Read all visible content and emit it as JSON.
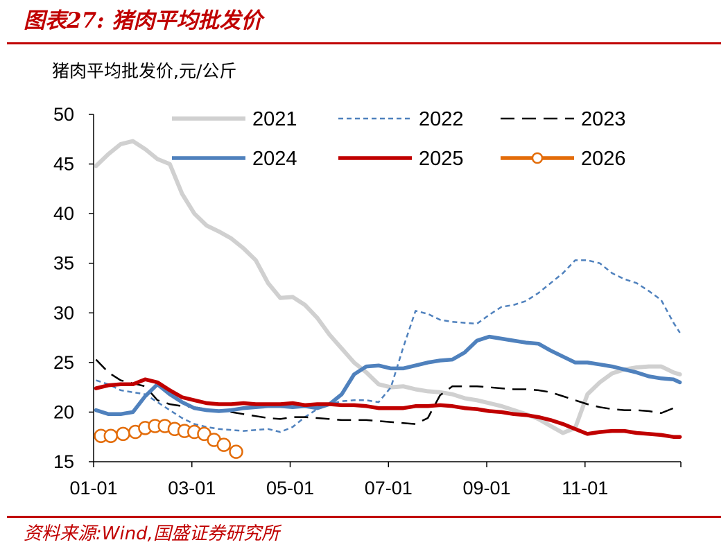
{
  "figure_label": "图表27:",
  "figure_title": "猪肉平均批发价",
  "source": "资料来源:Wind,国盛证券研究所",
  "colors": {
    "brand": "#c00000"
  },
  "chart_data": {
    "type": "line",
    "title": "猪肉平均批发价",
    "ylabel": "猪肉平均批发价,元/公斤",
    "xlabel": "",
    "ylim": [
      15,
      50
    ],
    "yticks": [
      15,
      20,
      25,
      30,
      35,
      40,
      45,
      50
    ],
    "xlim": [
      1,
      12.95
    ],
    "xticks": [
      {
        "label": "01-01",
        "value": 1
      },
      {
        "label": "03-01",
        "value": 3
      },
      {
        "label": "05-01",
        "value": 5
      },
      {
        "label": "07-01",
        "value": 7
      },
      {
        "label": "09-01",
        "value": 9
      },
      {
        "label": "11-01",
        "value": 11
      }
    ],
    "legend": "top, 3 columns",
    "series": [
      {
        "name": "2021",
        "color": "#d0d0d0",
        "style": "solid",
        "x": [
          1.05,
          1.3,
          1.55,
          1.8,
          2.05,
          2.3,
          2.55,
          2.8,
          3.05,
          3.3,
          3.55,
          3.8,
          4.05,
          4.3,
          4.55,
          4.8,
          5.05,
          5.3,
          5.55,
          5.8,
          6.05,
          6.3,
          6.55,
          6.8,
          7.05,
          7.3,
          7.55,
          7.8,
          8.05,
          8.3,
          8.55,
          8.8,
          9.05,
          9.3,
          9.55,
          9.8,
          10.05,
          10.3,
          10.55,
          10.8,
          11.05,
          11.3,
          11.55,
          11.8,
          12.05,
          12.3,
          12.55,
          12.8,
          12.93
        ],
        "y": [
          44.8,
          46.0,
          47.0,
          47.3,
          46.5,
          45.5,
          45.0,
          42.0,
          40.0,
          38.8,
          38.2,
          37.5,
          36.5,
          35.3,
          33.0,
          31.5,
          31.6,
          30.8,
          29.5,
          27.8,
          26.4,
          25.0,
          24.0,
          22.8,
          22.5,
          22.6,
          22.3,
          22.1,
          22.0,
          21.8,
          21.4,
          21.2,
          20.9,
          20.6,
          20.2,
          19.8,
          19.3,
          18.6,
          17.9,
          18.4,
          21.8,
          23.0,
          23.9,
          24.3,
          24.5,
          24.6,
          24.6,
          24.0,
          23.8
        ]
      },
      {
        "name": "2022",
        "color": "#4f81bd",
        "style": "dotted",
        "x": [
          1.05,
          1.3,
          1.55,
          1.8,
          2.05,
          2.3,
          2.55,
          2.8,
          3.05,
          3.3,
          3.55,
          3.8,
          4.05,
          4.3,
          4.55,
          4.8,
          5.05,
          5.3,
          5.55,
          5.8,
          6.05,
          6.3,
          6.55,
          6.8,
          7.05,
          7.3,
          7.55,
          7.8,
          8.05,
          8.3,
          8.55,
          8.8,
          9.05,
          9.3,
          9.55,
          9.8,
          10.05,
          10.3,
          10.55,
          10.8,
          11.05,
          11.3,
          11.55,
          11.8,
          12.05,
          12.3,
          12.55,
          12.8,
          12.93
        ],
        "y": [
          23.2,
          22.8,
          22.2,
          22.0,
          21.8,
          21.0,
          20.2,
          19.4,
          18.8,
          18.5,
          18.3,
          18.2,
          18.1,
          18.2,
          18.3,
          18.0,
          18.5,
          19.5,
          20.3,
          20.8,
          21.1,
          21.2,
          21.2,
          21.0,
          22.5,
          26.5,
          30.2,
          29.9,
          29.3,
          29.1,
          29.0,
          28.9,
          29.8,
          30.6,
          30.8,
          31.2,
          32.0,
          33.0,
          34.0,
          35.3,
          35.3,
          35.0,
          34.0,
          33.4,
          33.0,
          32.2,
          31.3,
          29.0,
          28.0
        ]
      },
      {
        "name": "2023",
        "color": "#000000",
        "style": "dashed",
        "x": [
          1.05,
          1.3,
          1.55,
          1.8,
          2.05,
          2.3,
          2.55,
          2.8,
          3.05,
          3.3,
          3.55,
          3.8,
          4.05,
          4.3,
          4.55,
          4.8,
          5.05,
          5.3,
          5.55,
          5.8,
          6.05,
          6.3,
          6.55,
          6.8,
          7.05,
          7.3,
          7.55,
          7.8,
          8.05,
          8.3,
          8.55,
          8.8,
          9.05,
          9.3,
          9.55,
          9.8,
          10.05,
          10.3,
          10.55,
          10.8,
          11.05,
          11.3,
          11.55,
          11.8,
          12.05,
          12.3,
          12.55,
          12.8,
          12.93
        ],
        "y": [
          25.3,
          24.0,
          23.2,
          22.9,
          22.6,
          21.2,
          20.8,
          20.6,
          20.5,
          20.3,
          20.1,
          20.0,
          19.8,
          19.6,
          19.4,
          19.3,
          19.5,
          19.5,
          19.4,
          19.3,
          19.2,
          19.2,
          19.2,
          19.1,
          19.0,
          18.9,
          18.8,
          19.4,
          21.7,
          22.6,
          22.6,
          22.6,
          22.5,
          22.4,
          22.3,
          22.3,
          22.2,
          22.0,
          21.6,
          21.2,
          20.8,
          20.5,
          20.3,
          20.2,
          20.2,
          20.1,
          19.9,
          20.4,
          20.4
        ]
      },
      {
        "name": "2024",
        "color": "#4f81bd",
        "style": "solid",
        "x": [
          1.05,
          1.3,
          1.55,
          1.8,
          2.05,
          2.3,
          2.55,
          2.8,
          3.05,
          3.3,
          3.55,
          3.8,
          4.05,
          4.3,
          4.55,
          4.8,
          5.05,
          5.3,
          5.55,
          5.8,
          6.05,
          6.3,
          6.55,
          6.8,
          7.05,
          7.3,
          7.55,
          7.8,
          8.05,
          8.3,
          8.55,
          8.8,
          9.05,
          9.3,
          9.55,
          9.8,
          10.05,
          10.3,
          10.55,
          10.8,
          11.05,
          11.3,
          11.55,
          11.8,
          12.05,
          12.3,
          12.55,
          12.8,
          12.93
        ],
        "y": [
          20.2,
          19.8,
          19.8,
          20.0,
          21.6,
          22.8,
          21.8,
          21.0,
          20.4,
          20.2,
          20.1,
          20.2,
          20.4,
          20.5,
          20.6,
          20.6,
          20.5,
          20.6,
          20.4,
          20.8,
          21.8,
          23.8,
          24.6,
          24.7,
          24.4,
          24.4,
          24.7,
          25.0,
          25.2,
          25.3,
          26.0,
          27.2,
          27.6,
          27.4,
          27.2,
          27.0,
          26.9,
          26.2,
          25.6,
          25.0,
          25.0,
          24.8,
          24.6,
          24.3,
          24.0,
          23.6,
          23.4,
          23.3,
          23.0
        ]
      },
      {
        "name": "2025",
        "color": "#c00000",
        "style": "solid",
        "x": [
          1.05,
          1.3,
          1.55,
          1.8,
          2.05,
          2.3,
          2.55,
          2.8,
          3.05,
          3.3,
          3.55,
          3.8,
          4.05,
          4.3,
          4.55,
          4.8,
          5.05,
          5.3,
          5.55,
          5.8,
          6.05,
          6.3,
          6.55,
          6.8,
          7.05,
          7.3,
          7.55,
          7.8,
          8.05,
          8.3,
          8.55,
          8.8,
          9.05,
          9.3,
          9.55,
          9.8,
          10.05,
          10.3,
          10.55,
          10.8,
          11.05,
          11.3,
          11.55,
          11.8,
          12.05,
          12.3,
          12.55,
          12.8,
          12.93
        ],
        "y": [
          22.4,
          22.7,
          22.8,
          22.8,
          23.3,
          23.0,
          22.2,
          21.5,
          21.2,
          20.9,
          20.8,
          20.8,
          20.9,
          20.8,
          20.8,
          20.8,
          20.9,
          20.7,
          20.8,
          20.8,
          20.7,
          20.7,
          20.6,
          20.4,
          20.4,
          20.4,
          20.6,
          20.6,
          20.7,
          20.6,
          20.4,
          20.3,
          20.1,
          20.0,
          19.8,
          19.7,
          19.5,
          19.2,
          18.8,
          18.3,
          17.8,
          18.0,
          18.1,
          18.1,
          17.9,
          17.8,
          17.7,
          17.5,
          17.5
        ]
      },
      {
        "name": "2026",
        "color": "#e36c09",
        "style": "marker",
        "x": [
          1.15,
          1.35,
          1.6,
          1.85,
          2.05,
          2.25,
          2.45,
          2.65,
          2.85,
          3.05,
          3.25,
          3.45,
          3.65,
          3.9
        ],
        "y": [
          17.6,
          17.6,
          17.8,
          18.0,
          18.4,
          18.6,
          18.6,
          18.3,
          18.1,
          18.0,
          17.8,
          17.2,
          16.7,
          16.0
        ]
      }
    ]
  }
}
